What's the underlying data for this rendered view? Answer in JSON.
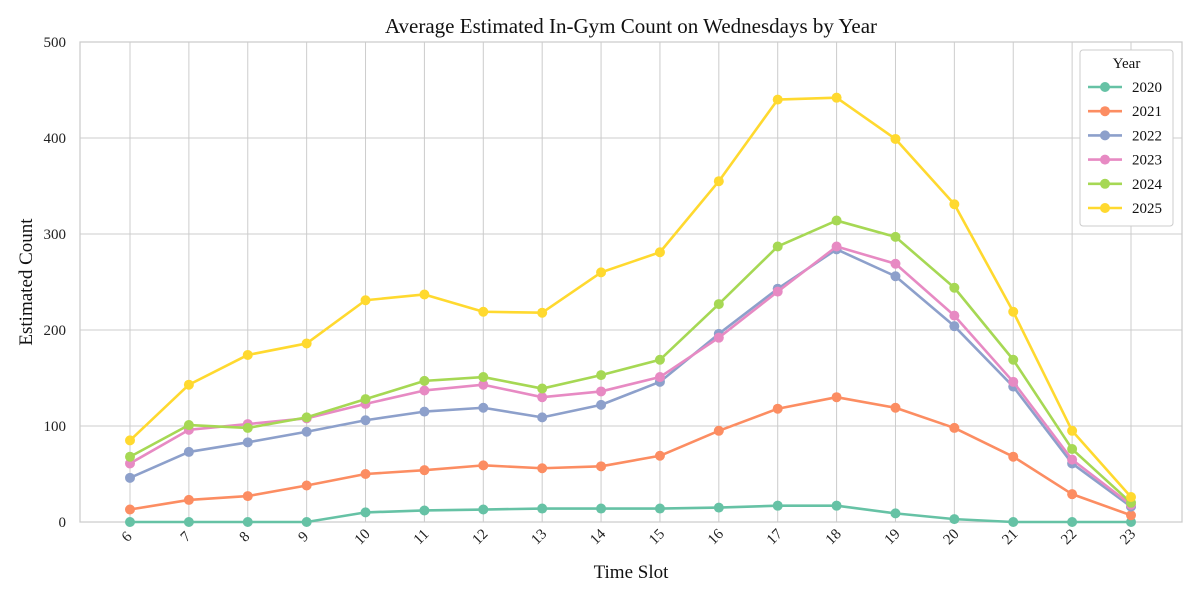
{
  "chart_data": {
    "type": "line",
    "title": "Average Estimated In-Gym Count on Wednesdays by Year",
    "xlabel": "Time Slot",
    "ylabel": "Estimated Count",
    "ylim": [
      0,
      500
    ],
    "yticks": [
      0,
      100,
      200,
      300,
      400,
      500
    ],
    "categories": [
      "6",
      "7",
      "8",
      "9",
      "10",
      "11",
      "12",
      "13",
      "14",
      "15",
      "16",
      "17",
      "18",
      "19",
      "20",
      "21",
      "22",
      "23"
    ],
    "legend_title": "Year",
    "legend_position": "top-right",
    "grid": true,
    "series": [
      {
        "name": "2020",
        "color": "#66c2a5",
        "values": [
          0,
          0,
          0,
          0,
          10,
          12,
          13,
          14,
          14,
          14,
          15,
          17,
          17,
          9,
          3,
          0,
          0,
          0
        ]
      },
      {
        "name": "2021",
        "color": "#fc8d62",
        "values": [
          13,
          23,
          27,
          38,
          50,
          54,
          59,
          56,
          58,
          69,
          95,
          118,
          130,
          119,
          98,
          68,
          29,
          7
        ]
      },
      {
        "name": "2022",
        "color": "#8da0cb",
        "values": [
          46,
          73,
          83,
          94,
          106,
          115,
          119,
          109,
          122,
          146,
          196,
          243,
          284,
          256,
          204,
          141,
          61,
          16
        ]
      },
      {
        "name": "2023",
        "color": "#e78ac3",
        "values": [
          61,
          96,
          102,
          108,
          123,
          137,
          143,
          130,
          136,
          151,
          192,
          240,
          287,
          269,
          215,
          146,
          65,
          18
        ]
      },
      {
        "name": "2024",
        "color": "#a6d854",
        "values": [
          68,
          101,
          98,
          109,
          128,
          147,
          151,
          139,
          153,
          169,
          227,
          287,
          314,
          297,
          244,
          169,
          76,
          20
        ]
      },
      {
        "name": "2025",
        "color": "#ffd92f",
        "values": [
          85,
          143,
          174,
          186,
          231,
          237,
          219,
          218,
          260,
          281,
          355,
          440,
          442,
          399,
          331,
          219,
          95,
          26
        ]
      }
    ]
  }
}
